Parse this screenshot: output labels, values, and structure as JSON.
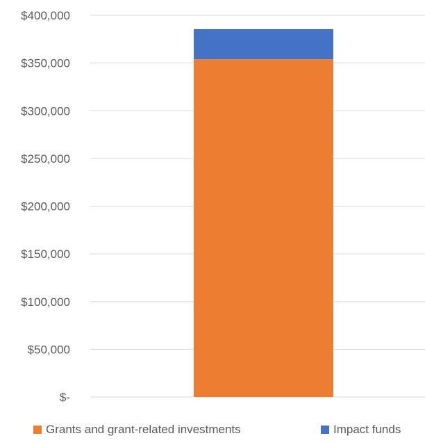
{
  "chart_data": {
    "type": "bar",
    "stacked": true,
    "categories": [
      ""
    ],
    "series": [
      {
        "name": "Grants and grant-related investments",
        "values": [
          354000
        ],
        "color": "#ED7D31"
      },
      {
        "name": "Impact funds",
        "values": [
          31500
        ],
        "color": "#4472C4"
      }
    ],
    "ylim": [
      0,
      400000
    ],
    "ytick_values": [
      0,
      50000,
      100000,
      150000,
      200000,
      250000,
      300000,
      350000,
      400000
    ],
    "ytick_labels": [
      "$-",
      "$50,000",
      "$100,000",
      "$150,000",
      "$200,000",
      "$250,000",
      "$300,000",
      "$350,000",
      "$400,000"
    ],
    "grid": true,
    "legend_position": "bottom",
    "gridline_color": "#D9D9D9",
    "text_color": "#595959"
  }
}
